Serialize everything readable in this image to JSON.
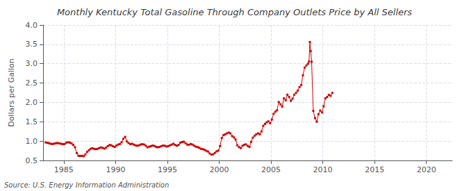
{
  "chart_data": {
    "type": "line",
    "title": "Monthly Kentucky Total Gasoline Through Company Outlets Price by All Sellers",
    "ylabel": "Dollars per Gallon",
    "annotations": [
      "Source: U.S. Energy Information Administration"
    ],
    "color": "#cc0000",
    "marker": "square",
    "line_style": "solid",
    "grid": true,
    "xlim": [
      1983.0,
      2022.5
    ],
    "ylim": [
      0.5,
      4.0
    ],
    "xticks": [
      1985,
      1990,
      1995,
      2000,
      2005,
      2010,
      2015,
      2020
    ],
    "yticks": [
      0.5,
      {
        "value": 1.0,
        "label": "1.0"
      },
      1.5,
      {
        "value": 2.0,
        "label": "2.0"
      },
      2.5,
      {
        "value": 3.0,
        "label": "3.0"
      },
      3.5,
      {
        "value": 4.0,
        "label": "4.0"
      }
    ],
    "x": [
      1983.25,
      1983.42,
      1983.58,
      1983.75,
      1983.92,
      1984.08,
      1984.25,
      1984.42,
      1984.58,
      1984.75,
      1984.92,
      1985.08,
      1985.25,
      1985.42,
      1985.58,
      1985.75,
      1985.92,
      1986.08,
      1986.25,
      1986.42,
      1986.58,
      1986.75,
      1986.92,
      1987.08,
      1987.25,
      1987.42,
      1987.58,
      1987.75,
      1987.92,
      1988.08,
      1988.25,
      1988.42,
      1988.58,
      1988.75,
      1988.92,
      1989.08,
      1989.25,
      1989.42,
      1989.58,
      1989.75,
      1989.92,
      1990.08,
      1990.25,
      1990.42,
      1990.58,
      1990.75,
      1990.92,
      1991.08,
      1991.25,
      1991.42,
      1991.58,
      1991.75,
      1991.92,
      1992.08,
      1992.25,
      1992.42,
      1992.58,
      1992.75,
      1992.92,
      1993.08,
      1993.25,
      1993.42,
      1993.58,
      1993.75,
      1993.92,
      1994.08,
      1994.25,
      1994.42,
      1994.58,
      1994.75,
      1994.92,
      1995.08,
      1995.25,
      1995.42,
      1995.58,
      1995.75,
      1995.92,
      1996.08,
      1996.25,
      1996.42,
      1996.58,
      1996.75,
      1996.92,
      1997.08,
      1997.25,
      1997.42,
      1997.58,
      1997.75,
      1997.92,
      1998.08,
      1998.25,
      1998.42,
      1998.58,
      1998.75,
      1998.92,
      1999.08,
      1999.25,
      1999.42,
      1999.58,
      1999.75,
      1999.92,
      2000.08,
      2000.25,
      2000.42,
      2000.58,
      2000.75,
      2000.92,
      2001.08,
      2001.25,
      2001.42,
      2001.58,
      2001.75,
      2001.92,
      2002.08,
      2002.25,
      2002.42,
      2002.58,
      2002.75,
      2002.92,
      2003.08,
      2003.25,
      2003.42,
      2003.58,
      2003.75,
      2003.92,
      2004.08,
      2004.25,
      2004.42,
      2004.58,
      2004.75,
      2004.92,
      2005.08,
      2005.25,
      2005.42,
      2005.58,
      2005.75,
      2005.92,
      2006.08,
      2006.25,
      2006.42,
      2006.58,
      2006.75,
      2006.92,
      2007.08,
      2007.25,
      2007.42,
      2007.58,
      2007.75,
      2007.92,
      2008.08,
      2008.25,
      2008.42,
      2008.58,
      2008.67,
      2008.75,
      2008.83,
      2008.92,
      2009.08,
      2009.25,
      2009.42,
      2009.58,
      2009.75,
      2009.92,
      2010.08,
      2010.25,
      2010.42,
      2010.58,
      2010.75,
      2010.92
    ],
    "values": [
      0.965,
      0.955,
      0.945,
      0.93,
      0.925,
      0.935,
      0.945,
      0.95,
      0.94,
      0.93,
      0.92,
      0.925,
      0.96,
      0.97,
      0.96,
      0.94,
      0.9,
      0.84,
      0.69,
      0.62,
      0.615,
      0.62,
      0.61,
      0.655,
      0.72,
      0.76,
      0.8,
      0.815,
      0.8,
      0.79,
      0.8,
      0.82,
      0.835,
      0.825,
      0.805,
      0.83,
      0.87,
      0.9,
      0.89,
      0.865,
      0.85,
      0.885,
      0.91,
      0.925,
      0.97,
      1.06,
      1.11,
      0.99,
      0.95,
      0.92,
      0.93,
      0.91,
      0.89,
      0.88,
      0.89,
      0.91,
      0.92,
      0.91,
      0.88,
      0.84,
      0.855,
      0.87,
      0.885,
      0.875,
      0.85,
      0.84,
      0.85,
      0.87,
      0.885,
      0.88,
      0.86,
      0.87,
      0.89,
      0.91,
      0.93,
      0.9,
      0.88,
      0.9,
      0.96,
      0.975,
      0.985,
      0.945,
      0.91,
      0.905,
      0.925,
      0.91,
      0.88,
      0.855,
      0.845,
      0.825,
      0.8,
      0.79,
      0.775,
      0.75,
      0.73,
      0.68,
      0.65,
      0.66,
      0.695,
      0.735,
      0.755,
      0.87,
      1.08,
      1.155,
      1.175,
      1.2,
      1.22,
      1.2,
      1.13,
      1.095,
      1.04,
      0.89,
      0.845,
      0.82,
      0.88,
      0.905,
      0.915,
      0.875,
      0.85,
      0.98,
      1.09,
      1.14,
      1.175,
      1.2,
      1.175,
      1.25,
      1.395,
      1.445,
      1.485,
      1.51,
      1.46,
      1.555,
      1.705,
      1.76,
      1.795,
      2.01,
      1.95,
      1.89,
      2.105,
      2.055,
      2.2,
      2.14,
      2.04,
      2.095,
      2.2,
      2.25,
      2.305,
      2.395,
      2.45,
      2.7,
      2.9,
      2.955,
      3.0,
      3.055,
      3.56,
      3.325,
      3.05,
      1.78,
      1.595,
      1.5,
      1.695,
      1.79,
      1.74,
      1.9,
      2.105,
      2.14,
      2.195,
      2.17,
      2.245
    ]
  }
}
